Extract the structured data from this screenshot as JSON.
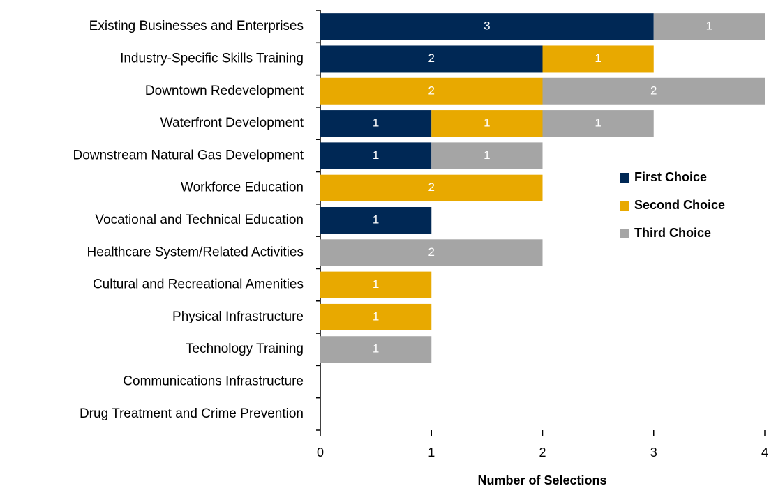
{
  "chart_data": {
    "type": "stacked-barh",
    "xlabel": "Number of Selections",
    "categories": [
      "Existing Businesses and Enterprises",
      "Industry-Specific Skills Training",
      "Downtown Redevelopment",
      "Waterfront Development",
      "Downstream Natural Gas Development",
      "Workforce Education",
      "Vocational and Technical Education",
      "Healthcare System/Related Activities",
      "Cultural and Recreational Amenities",
      "Physical Infrastructure",
      "Technology Training",
      "Communications Infrastructure",
      "Drug Treatment and Crime Prevention"
    ],
    "series": [
      {
        "name": "First Choice",
        "color": "#002855",
        "values": [
          3,
          2,
          0,
          1,
          1,
          0,
          1,
          0,
          0,
          0,
          0,
          0,
          0
        ]
      },
      {
        "name": "Second Choice",
        "color": "#e8a900",
        "values": [
          0,
          1,
          2,
          1,
          0,
          2,
          0,
          0,
          1,
          1,
          0,
          0,
          0
        ]
      },
      {
        "name": "Third Choice",
        "color": "#a5a5a5",
        "values": [
          1,
          0,
          2,
          1,
          1,
          0,
          0,
          2,
          0,
          0,
          1,
          0,
          0
        ]
      }
    ],
    "xlim": [
      0,
      4
    ],
    "xticks": [
      0,
      1,
      2,
      3,
      4
    ],
    "legend": "right",
    "data_labels": true
  }
}
